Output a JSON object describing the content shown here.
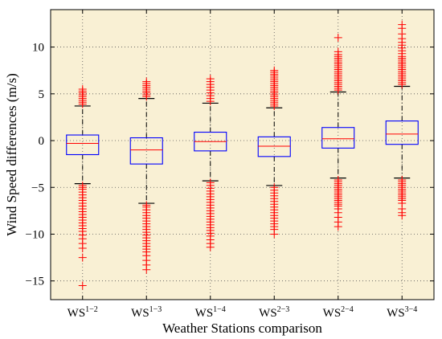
{
  "chart_data": {
    "type": "box",
    "title": "",
    "xlabel": "Weather Stations comparison",
    "ylabel": "Wind Speed differences (m/s)",
    "ylim": [
      -17,
      14
    ],
    "yticks": [
      -15,
      -10,
      -5,
      0,
      5,
      10
    ],
    "grid": true,
    "categories": [
      {
        "base": "WS",
        "sup": "1−2"
      },
      {
        "base": "WS",
        "sup": "1−3"
      },
      {
        "base": "WS",
        "sup": "1−4"
      },
      {
        "base": "WS",
        "sup": "2−3"
      },
      {
        "base": "WS",
        "sup": "2−4"
      },
      {
        "base": "WS",
        "sup": "3−4"
      }
    ],
    "boxes": [
      {
        "whisker_low": -4.6,
        "q1": -1.5,
        "median": -0.3,
        "q3": 0.6,
        "whisker_high": 3.7,
        "outliers_high": [
          3.9,
          4.1,
          4.3,
          4.5,
          4.7,
          4.9,
          5.1,
          5.3,
          5.5
        ],
        "outliers_low": [
          -4.8,
          -5.0,
          -5.2,
          -5.5,
          -5.8,
          -6.1,
          -6.4,
          -6.7,
          -7.0,
          -7.3,
          -7.6,
          -7.9,
          -8.2,
          -8.5,
          -8.8,
          -9.1,
          -9.4,
          -9.7,
          -10.1,
          -10.5,
          -11.0,
          -11.5,
          -12.5,
          -15.5
        ]
      },
      {
        "whisker_low": -6.7,
        "q1": -2.5,
        "median": -1.0,
        "q3": 0.3,
        "whisker_high": 4.5,
        "outliers_high": [
          4.7,
          4.9,
          5.1,
          5.3,
          5.5,
          5.7,
          5.9,
          6.1,
          6.3
        ],
        "outliers_low": [
          -6.9,
          -7.1,
          -7.4,
          -7.7,
          -8.0,
          -8.3,
          -8.6,
          -8.9,
          -9.2,
          -9.5,
          -9.8,
          -10.1,
          -10.4,
          -10.7,
          -11.0,
          -11.3,
          -11.6,
          -11.9,
          -12.3,
          -12.8,
          -13.3,
          -13.8
        ]
      },
      {
        "whisker_low": -4.3,
        "q1": -1.1,
        "median": -0.1,
        "q3": 0.9,
        "whisker_high": 4.0,
        "outliers_high": [
          4.2,
          4.5,
          4.8,
          5.1,
          5.4,
          5.7,
          6.0,
          6.3,
          6.6
        ],
        "outliers_low": [
          -4.5,
          -4.8,
          -5.1,
          -5.4,
          -5.7,
          -6.0,
          -6.3,
          -6.6,
          -6.9,
          -7.2,
          -7.5,
          -7.8,
          -8.1,
          -8.4,
          -8.7,
          -9.0,
          -9.3,
          -9.6,
          -9.9,
          -10.2,
          -10.6,
          -11.0,
          -11.4
        ]
      },
      {
        "whisker_low": -4.8,
        "q1": -1.7,
        "median": -0.6,
        "q3": 0.4,
        "whisker_high": 3.5,
        "outliers_high": [
          3.7,
          3.9,
          4.1,
          4.3,
          4.5,
          4.7,
          4.9,
          5.1,
          5.3,
          5.5,
          5.7,
          5.9,
          6.1,
          6.3,
          6.5,
          6.7,
          6.9,
          7.1,
          7.3,
          7.5
        ],
        "outliers_low": [
          -5.0,
          -5.3,
          -5.6,
          -5.9,
          -6.2,
          -6.5,
          -6.8,
          -7.1,
          -7.4,
          -7.7,
          -8.0,
          -8.3,
          -8.6,
          -8.9,
          -9.2,
          -9.5,
          -10.0
        ]
      },
      {
        "whisker_low": -4.0,
        "q1": -0.8,
        "median": 0.2,
        "q3": 1.4,
        "whisker_high": 5.2,
        "outliers_high": [
          5.4,
          5.6,
          5.8,
          6.0,
          6.2,
          6.4,
          6.6,
          6.8,
          7.0,
          7.2,
          7.4,
          7.6,
          7.8,
          8.0,
          8.2,
          8.4,
          8.6,
          8.8,
          9.0,
          9.2,
          9.5,
          11.0
        ],
        "outliers_low": [
          -4.2,
          -4.4,
          -4.6,
          -4.8,
          -5.0,
          -5.2,
          -5.4,
          -5.6,
          -5.8,
          -6.0,
          -6.2,
          -6.4,
          -6.6,
          -6.8,
          -7.0,
          -7.3,
          -7.7,
          -8.2,
          -8.7,
          -9.2
        ]
      },
      {
        "whisker_low": -4.0,
        "q1": -0.4,
        "median": 0.7,
        "q3": 2.1,
        "whisker_high": 5.8,
        "outliers_high": [
          6.0,
          6.2,
          6.4,
          6.6,
          6.8,
          7.0,
          7.2,
          7.4,
          7.6,
          7.8,
          8.0,
          8.2,
          8.4,
          8.6,
          8.8,
          9.0,
          9.3,
          9.6,
          9.9,
          10.2,
          10.5,
          10.9,
          11.4,
          12.0,
          12.4
        ],
        "outliers_low": [
          -4.2,
          -4.4,
          -4.6,
          -4.8,
          -5.0,
          -5.2,
          -5.4,
          -5.6,
          -5.8,
          -6.0,
          -6.2,
          -6.4,
          -6.7,
          -7.3,
          -7.7,
          -8.0
        ]
      }
    ],
    "colors": {
      "plot_background": "#f9f0d4",
      "box": "#0000ff",
      "median": "#ff0000",
      "outlier": "#ff0000",
      "whisker": "#000000",
      "grid": "#555555"
    }
  }
}
